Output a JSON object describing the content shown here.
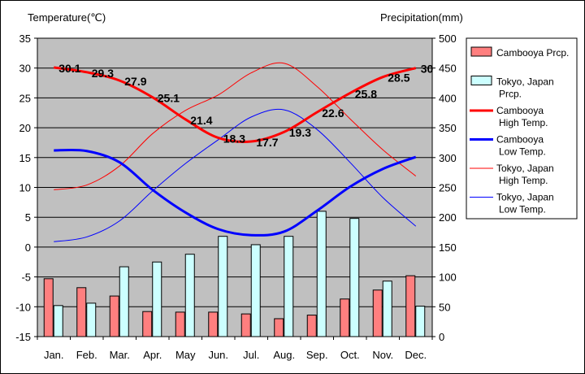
{
  "chart_data": {
    "type": "bar",
    "categories": [
      "Jan.",
      "Feb.",
      "Mar.",
      "Apr.",
      "May",
      "Jun.",
      "Jul.",
      "Aug.",
      "Sep.",
      "Oct.",
      "Nov.",
      "Dec."
    ],
    "ylabel_left": "Temperature(℃)",
    "ylabel_right": "Precipitation(mm)",
    "ylim_left": [
      -15,
      35
    ],
    "yticks_left": [
      "35",
      "30",
      "25",
      "20",
      "15",
      "10",
      "5",
      "0",
      "-5",
      "-10",
      "-15"
    ],
    "ylim_right": [
      0,
      500
    ],
    "yticks_right": [
      "500",
      "450",
      "400",
      "350",
      "300",
      "250",
      "200",
      "150",
      "100",
      "50",
      "0"
    ],
    "grid": "horizontal",
    "background": "#c0c0c0",
    "legend_position": "right",
    "bar_series": [
      {
        "name": "Cambooya Prcp.",
        "color": "#ff7f7f",
        "values": [
          97,
          82,
          68,
          42,
          41,
          41,
          38,
          30,
          36,
          63,
          78,
          102
        ]
      },
      {
        "name": "Tokyo, Japan Prcp.",
        "color": "#ccffff",
        "values": [
          52,
          56,
          117,
          125,
          138,
          168,
          154,
          168,
          210,
          198,
          93,
          51
        ]
      }
    ],
    "line_series": [
      {
        "name": "Cambooya High Temp.",
        "color": "#ff0000",
        "width": 3,
        "values": [
          30.1,
          29.3,
          27.9,
          25.1,
          21.4,
          18.3,
          17.7,
          19.3,
          22.6,
          25.8,
          28.5,
          30
        ],
        "labels": [
          "30.1",
          "29.3",
          "27.9",
          "25.1",
          "21.4",
          "18.3",
          "17.7",
          "19.3",
          "22.6",
          "25.8",
          "28.5",
          "30"
        ]
      },
      {
        "name": "Cambooya Low Temp.",
        "color": "#0000ff",
        "width": 3,
        "values": [
          16.2,
          16.1,
          14.2,
          9.6,
          5.8,
          3.0,
          2.0,
          2.6,
          6.1,
          10.1,
          13.1,
          15.1
        ]
      },
      {
        "name": "Tokyo, Japan High Temp.",
        "color": "#ff0000",
        "width": 1,
        "values": [
          9.6,
          10.4,
          13.6,
          19.0,
          22.9,
          25.5,
          29.2,
          30.8,
          26.9,
          21.5,
          16.3,
          11.9
        ]
      },
      {
        "name": "Tokyo, Japan Low Temp.",
        "color": "#0000ff",
        "width": 1,
        "values": [
          0.9,
          1.7,
          4.4,
          9.4,
          14.0,
          18.0,
          21.8,
          23.0,
          19.7,
          14.2,
          8.3,
          3.5
        ]
      }
    ],
    "legend": [
      {
        "line1": "Cambooya Prcp.",
        "line2": "",
        "kind": "bar",
        "color": "#ff7f7f"
      },
      {
        "line1": "Tokyo, Japan",
        "line2": "Prcp.",
        "kind": "bar",
        "color": "#ccffff"
      },
      {
        "line1": "Cambooya",
        "line2": "High Temp.",
        "kind": "line",
        "color": "#ff0000",
        "width": 3
      },
      {
        "line1": "Cambooya",
        "line2": "Low Temp.",
        "kind": "line",
        "color": "#0000ff",
        "width": 3
      },
      {
        "line1": "Tokyo, Japan",
        "line2": "High Temp.",
        "kind": "line",
        "color": "#ff0000",
        "width": 1
      },
      {
        "line1": "Tokyo, Japan",
        "line2": "Low Temp.",
        "kind": "line",
        "color": "#0000ff",
        "width": 1
      }
    ]
  }
}
